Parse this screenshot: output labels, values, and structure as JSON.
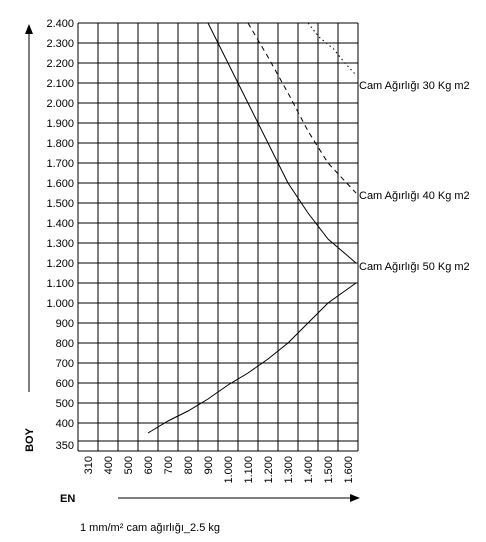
{
  "chart_data": {
    "type": "line",
    "title": "",
    "xlabel": "EN",
    "ylabel": "BOY",
    "footnote": "1 mm/m² cam ağırlığı_2.5 kg",
    "x_ticks": [
      310,
      400,
      500,
      600,
      700,
      800,
      900,
      1000,
      1100,
      1200,
      1300,
      1400,
      1500,
      1600
    ],
    "x_tick_labels": [
      "310",
      "400",
      "500",
      "600",
      "700",
      "800",
      "900",
      "1.000",
      "1.100",
      "1.200",
      "1.300",
      "1.400",
      "1.500",
      "1.600"
    ],
    "y_ticks": [
      350,
      400,
      500,
      600,
      700,
      800,
      900,
      1000,
      1100,
      1200,
      1300,
      1400,
      1500,
      1600,
      1700,
      1800,
      1900,
      2000,
      2100,
      2200,
      2300,
      2400
    ],
    "y_tick_labels": [
      "350",
      "400",
      "500",
      "600",
      "700",
      "800",
      "900",
      "1.000",
      "1.100",
      "1.200",
      "1.300",
      "1.400",
      "1.500",
      "1.600",
      "1.700",
      "1.800",
      "1.900",
      "2.000",
      "2.100",
      "2.200",
      "2.300",
      "2.400"
    ],
    "xlim": [
      310,
      1600
    ],
    "ylim": [
      350,
      2400
    ],
    "grid": true,
    "series": [
      {
        "name": "Cam Ağırlığı 30 Kg m2",
        "style": "dotted",
        "x": [
          1400,
          1455,
          1520,
          1560,
          1600
        ],
        "y": [
          2400,
          2330,
          2270,
          2200,
          2140
        ]
      },
      {
        "name": "Cam Ağırlığı 40 Kg m2",
        "style": "dashed",
        "x": [
          1100,
          1200,
          1300,
          1400,
          1500,
          1600
        ],
        "y": [
          2400,
          2230,
          2050,
          1860,
          1700,
          1550
        ]
      },
      {
        "name": "Cam Ağırlığı 50 Kg m2",
        "style": "solid",
        "x": [
          900,
          1000,
          1100,
          1200,
          1300,
          1400,
          1500,
          1600
        ],
        "y": [
          2400,
          2200,
          2000,
          1800,
          1600,
          1450,
          1320,
          1200
        ]
      },
      {
        "name": "",
        "style": "solid",
        "x": [
          600,
          700,
          800,
          900,
          1000,
          1100,
          1200,
          1300,
          1400,
          1500,
          1600
        ],
        "y": [
          350,
          410,
          460,
          520,
          590,
          650,
          720,
          800,
          900,
          1000,
          1100
        ]
      }
    ]
  }
}
